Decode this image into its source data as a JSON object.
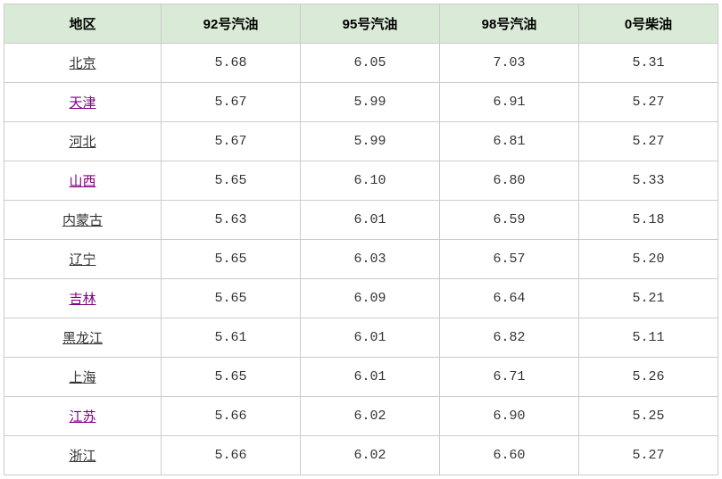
{
  "table": {
    "header_bg": "#d9ead6",
    "border_color": "#cccccc",
    "cell_bg": "#ffffff",
    "visited_link_color": "#800080",
    "unvisited_link_color": "#333333",
    "columns": [
      {
        "label": "地区"
      },
      {
        "label": "92号汽油"
      },
      {
        "label": "95号汽油"
      },
      {
        "label": "98号汽油"
      },
      {
        "label": "0号柴油"
      }
    ],
    "rows": [
      {
        "region": "北京",
        "visited": false,
        "v92": "5.68",
        "v95": "6.05",
        "v98": "7.03",
        "v0": "5.31"
      },
      {
        "region": "天津",
        "visited": true,
        "v92": "5.67",
        "v95": "5.99",
        "v98": "6.91",
        "v0": "5.27"
      },
      {
        "region": "河北",
        "visited": false,
        "v92": "5.67",
        "v95": "5.99",
        "v98": "6.81",
        "v0": "5.27"
      },
      {
        "region": "山西",
        "visited": true,
        "v92": "5.65",
        "v95": "6.10",
        "v98": "6.80",
        "v0": "5.33"
      },
      {
        "region": "内蒙古",
        "visited": false,
        "v92": "5.63",
        "v95": "6.01",
        "v98": "6.59",
        "v0": "5.18"
      },
      {
        "region": "辽宁",
        "visited": false,
        "v92": "5.65",
        "v95": "6.03",
        "v98": "6.57",
        "v0": "5.20"
      },
      {
        "region": "吉林",
        "visited": true,
        "v92": "5.65",
        "v95": "6.09",
        "v98": "6.64",
        "v0": "5.21"
      },
      {
        "region": "黑龙江",
        "visited": false,
        "v92": "5.61",
        "v95": "6.01",
        "v98": "6.82",
        "v0": "5.11"
      },
      {
        "region": "上海",
        "visited": false,
        "v92": "5.65",
        "v95": "6.01",
        "v98": "6.71",
        "v0": "5.26"
      },
      {
        "region": "江苏",
        "visited": true,
        "v92": "5.66",
        "v95": "6.02",
        "v98": "6.90",
        "v0": "5.25"
      },
      {
        "region": "浙江",
        "visited": false,
        "v92": "5.66",
        "v95": "6.02",
        "v98": "6.60",
        "v0": "5.27"
      }
    ]
  }
}
